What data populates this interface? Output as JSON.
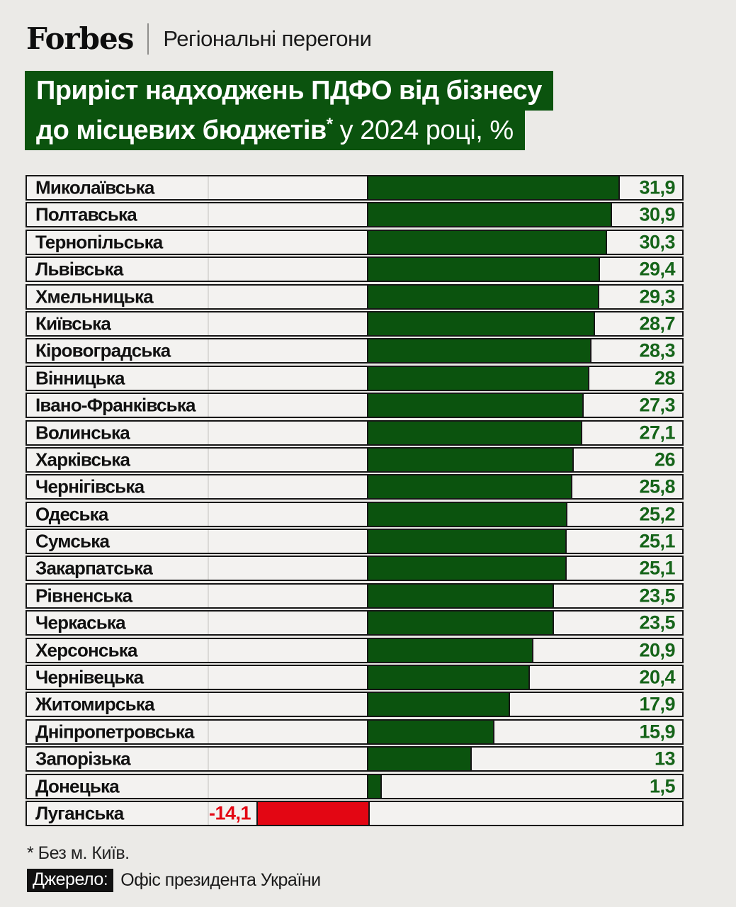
{
  "header": {
    "brand": "Forbes",
    "tagline": "Регіональні перегони"
  },
  "title": {
    "line1": "Приріст надходжень ПДФО від бізнесу",
    "line2_bold": "до місцевих бюджетів",
    "line2_asterisk": "*",
    "line2_rest": " у 2024 році, %"
  },
  "footer": {
    "footnote": "* Без м. Київ.",
    "source_label": "Джерело:",
    "source": "Офіс президента України"
  },
  "colors": {
    "page_bg": "#ebeae7",
    "row_bg": "#f3f2f0",
    "bar_green": "#0b530e",
    "value_green": "#156419",
    "bar_red": "#e30613",
    "border_black": "#161616",
    "title_bg": "#0b530e"
  },
  "chart_data": {
    "type": "bar",
    "orientation": "horizontal",
    "unit": "%",
    "title": "Приріст надходжень ПДФО від бізнесу до місцевих бюджетів* у 2024 році, %",
    "footnote": "* Без м. Київ.",
    "source": "Офіс президента України",
    "axis": {
      "baseline": 0,
      "gridlines": false,
      "legend": "none",
      "value_labels": "end-of-row"
    },
    "categories": [
      "Миколаївська",
      "Полтавська",
      "Тернопільська",
      "Львівська",
      "Хмельницька",
      "Київська",
      "Кіровоградська",
      "Вінницька",
      "Івано-Франківська",
      "Волинська",
      "Харківська",
      "Чернігівська",
      "Одеська",
      "Сумська",
      "Закарпатська",
      "Рівненська",
      "Черкаська",
      "Херсонська",
      "Чернівецька",
      "Житомирська",
      "Дніпропетровська",
      "Запорізька",
      "Донецька",
      "Луганська"
    ],
    "values": [
      31.9,
      30.9,
      30.3,
      29.4,
      29.3,
      28.7,
      28.3,
      28,
      27.3,
      27.1,
      26,
      25.8,
      25.2,
      25.1,
      25.1,
      23.5,
      23.5,
      20.9,
      20.4,
      17.9,
      15.9,
      13,
      1.5,
      -14.1
    ],
    "rows": [
      {
        "name": "Миколаївська",
        "value": 31.9,
        "label": "31,9"
      },
      {
        "name": "Полтавська",
        "value": 30.9,
        "label": "30,9"
      },
      {
        "name": "Тернопільська",
        "value": 30.3,
        "label": "30,3"
      },
      {
        "name": "Львівська",
        "value": 29.4,
        "label": "29,4"
      },
      {
        "name": "Хмельницька",
        "value": 29.3,
        "label": "29,3"
      },
      {
        "name": "Київська",
        "value": 28.7,
        "label": "28,7"
      },
      {
        "name": "Кіровоградська",
        "value": 28.3,
        "label": "28,3"
      },
      {
        "name": "Вінницька",
        "value": 28,
        "label": "28"
      },
      {
        "name": "Івано-Франківська",
        "value": 27.3,
        "label": "27,3"
      },
      {
        "name": "Волинська",
        "value": 27.1,
        "label": "27,1"
      },
      {
        "name": "Харківська",
        "value": 26,
        "label": "26"
      },
      {
        "name": "Чернігівська",
        "value": 25.8,
        "label": "25,8"
      },
      {
        "name": "Одеська",
        "value": 25.2,
        "label": "25,2"
      },
      {
        "name": "Сумська",
        "value": 25.1,
        "label": "25,1"
      },
      {
        "name": "Закарпатська",
        "value": 25.1,
        "label": "25,1"
      },
      {
        "name": "Рівненська",
        "value": 23.5,
        "label": "23,5"
      },
      {
        "name": "Черкаська",
        "value": 23.5,
        "label": "23,5"
      },
      {
        "name": "Херсонська",
        "value": 20.9,
        "label": "20,9"
      },
      {
        "name": "Чернівецька",
        "value": 20.4,
        "label": "20,4"
      },
      {
        "name": "Житомирська",
        "value": 17.9,
        "label": "17,9"
      },
      {
        "name": "Дніпропетровська",
        "value": 15.9,
        "label": "15,9"
      },
      {
        "name": "Запорізька",
        "value": 13,
        "label": "13"
      },
      {
        "name": "Донецька",
        "value": 1.5,
        "label": "1,5"
      },
      {
        "name": "Луганська",
        "value": -14.1,
        "label": "-14,1"
      }
    ]
  }
}
